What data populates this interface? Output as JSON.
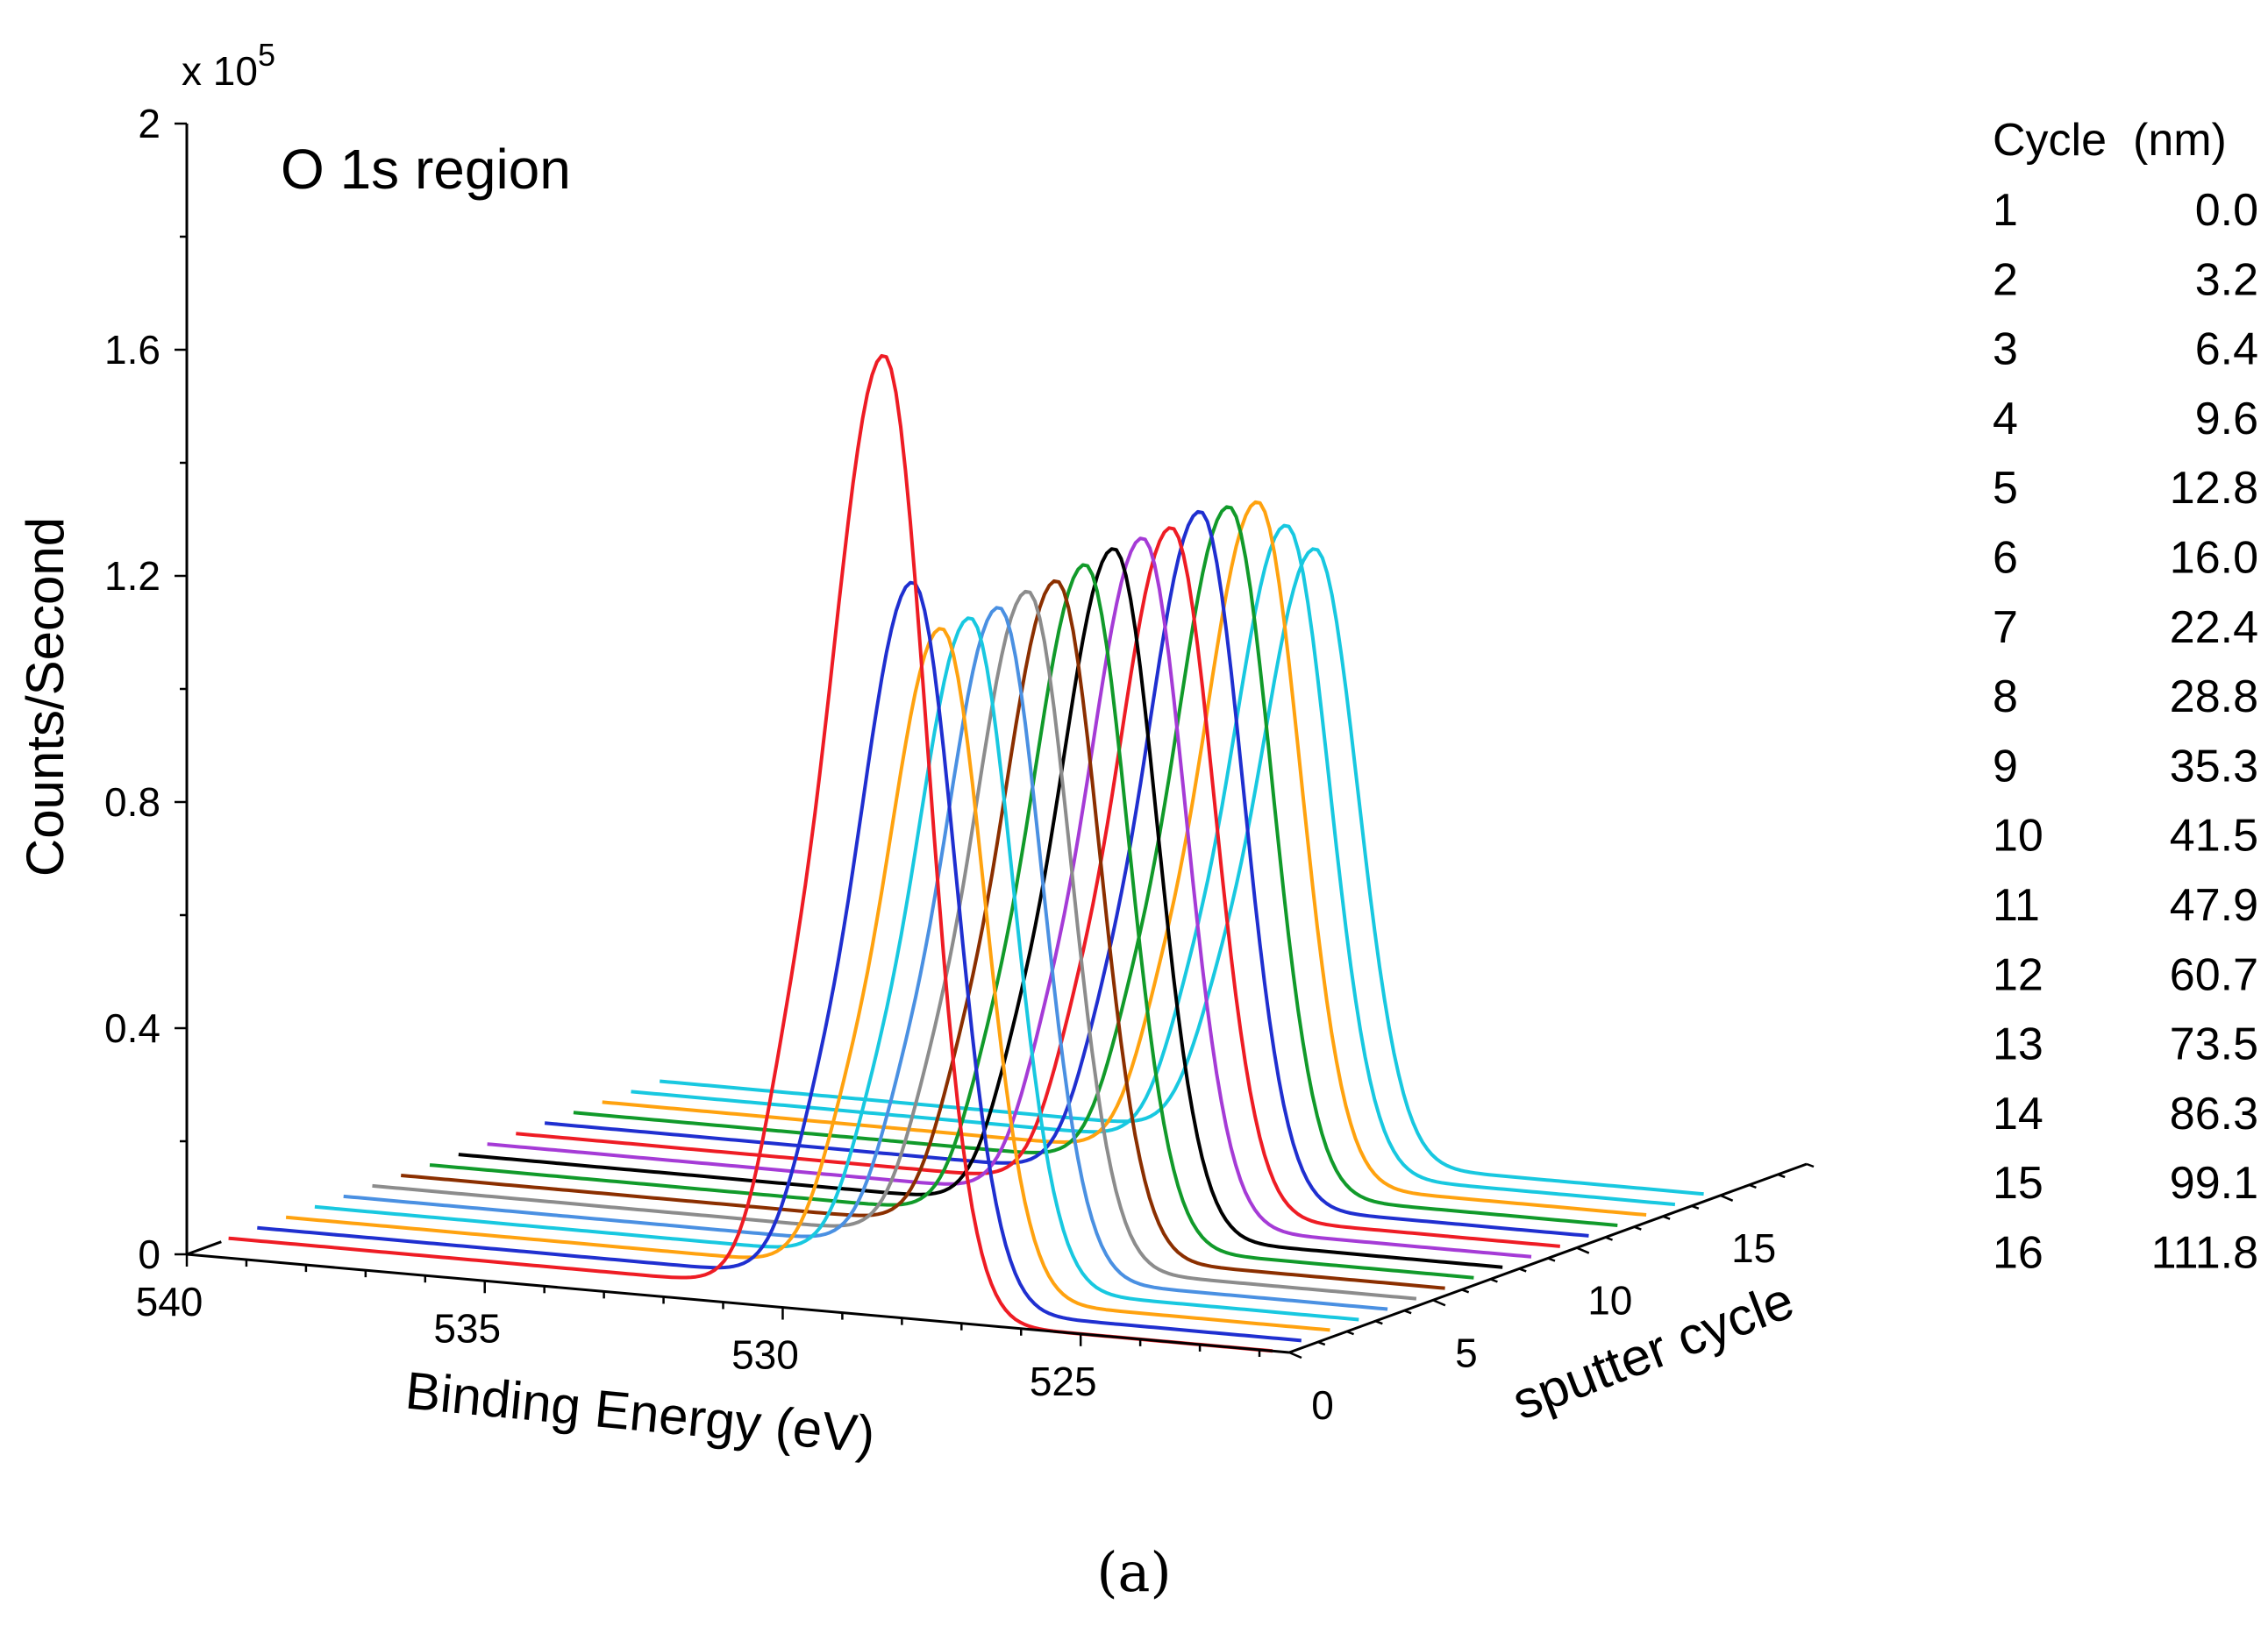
{
  "chart_data": {
    "type": "line",
    "title": "O 1s region",
    "xlabel": "Binding Energy (eV)",
    "ylabel": "Counts/Second",
    "zlabel": "sputter cycle",
    "y_multiplier": "x 10",
    "y_exponent": "5",
    "caption": "(a)",
    "xlim": [
      540,
      521.5
    ],
    "ylim": [
      0,
      2
    ],
    "zlim": [
      0,
      18
    ],
    "xticks": [
      "540",
      "535",
      "530",
      "525"
    ],
    "yticks": [
      "0",
      "0.4",
      "0.8",
      "1.2",
      "1.6",
      "2"
    ],
    "zticks": [
      "0",
      "5",
      "10",
      "15"
    ],
    "peak_position_eV": 528.3,
    "series_heights_x1e5": [
      1.7,
      1.28,
      1.18,
      1.18,
      1.18,
      1.19,
      1.19,
      1.2,
      1.21,
      1.21,
      1.21,
      1.22,
      1.21,
      1.2,
      1.14,
      1.08
    ],
    "series_colors": [
      "#ee1c24",
      "#1f2fd0",
      "#ffa20f",
      "#18c8e0",
      "#4a90e2",
      "#8c8c8c",
      "#8b2f00",
      "#119a2a",
      "#000000",
      "#a53bd6",
      "#ee1c24",
      "#1f2fd0",
      "#119a2a",
      "#ffa20f",
      "#18c8e0",
      "#18c8e0"
    ],
    "legend_table": {
      "header": [
        "Cycle",
        "(nm)"
      ],
      "rows": [
        [
          "1",
          "0.0"
        ],
        [
          "2",
          "3.2"
        ],
        [
          "3",
          "6.4"
        ],
        [
          "4",
          "9.6"
        ],
        [
          "5",
          "12.8"
        ],
        [
          "6",
          "16.0"
        ],
        [
          "7",
          "22.4"
        ],
        [
          "8",
          "28.8"
        ],
        [
          "9",
          "35.3"
        ],
        [
          "10",
          "41.5"
        ],
        [
          "11",
          "47.9"
        ],
        [
          "12",
          "60.7"
        ],
        [
          "13",
          "73.5"
        ],
        [
          "14",
          "86.3"
        ],
        [
          "15",
          "99.1"
        ],
        [
          "16",
          "111.8"
        ]
      ]
    }
  }
}
